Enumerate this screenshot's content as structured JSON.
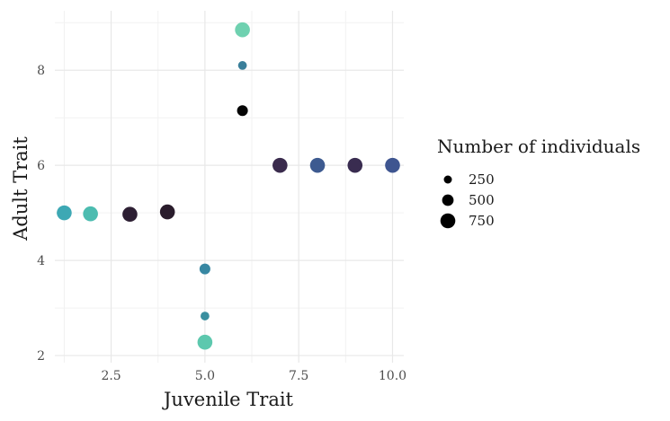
{
  "chart_data": {
    "type": "scatter",
    "xlabel": "Juvenile Trait",
    "ylabel": "Adult Trait",
    "xlim": [
      1.0,
      10.3
    ],
    "ylim": [
      1.85,
      9.25
    ],
    "x_ticks": [
      2.5,
      5.0,
      7.5,
      10.0
    ],
    "x_tick_labels": [
      "2.5",
      "5.0",
      "7.5",
      "10.0"
    ],
    "y_ticks": [
      2,
      4,
      6,
      8
    ],
    "y_tick_labels": [
      "2",
      "4",
      "6",
      "8"
    ],
    "grid": true,
    "legend": {
      "title": "Number of individuals",
      "placement": "right",
      "entries": [
        {
          "label": "250",
          "size": 250
        },
        {
          "label": "500",
          "size": 500
        },
        {
          "label": "750",
          "size": 750
        }
      ]
    },
    "points": [
      {
        "x": 6,
        "y": 8.85,
        "size": 750,
        "color": "#6fd1b0"
      },
      {
        "x": 6,
        "y": 8.1,
        "size": 300,
        "color": "#3a7f9a"
      },
      {
        "x": 6,
        "y": 7.15,
        "size": 450,
        "color": "#050505"
      },
      {
        "x": 7,
        "y": 6.0,
        "size": 750,
        "color": "#3a2b4d"
      },
      {
        "x": 8,
        "y": 6.0,
        "size": 750,
        "color": "#3d5a90"
      },
      {
        "x": 9,
        "y": 6.0,
        "size": 750,
        "color": "#392c50"
      },
      {
        "x": 10,
        "y": 6.0,
        "size": 750,
        "color": "#3e5590"
      },
      {
        "x": 1.25,
        "y": 5.0,
        "size": 750,
        "color": "#3da8b4"
      },
      {
        "x": 1.95,
        "y": 4.98,
        "size": 750,
        "color": "#4cbcb0"
      },
      {
        "x": 3,
        "y": 4.97,
        "size": 750,
        "color": "#2d1f33"
      },
      {
        "x": 4,
        "y": 5.02,
        "size": 750,
        "color": "#2a1c2c"
      },
      {
        "x": 5,
        "y": 3.82,
        "size": 450,
        "color": "#3787a2"
      },
      {
        "x": 5,
        "y": 2.83,
        "size": 300,
        "color": "#3a8f9f"
      },
      {
        "x": 5,
        "y": 2.28,
        "size": 750,
        "color": "#5dc8ae"
      }
    ]
  }
}
